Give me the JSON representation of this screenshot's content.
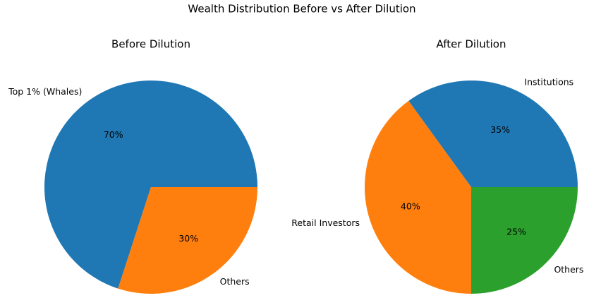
{
  "title": "Wealth Distribution Before vs After Dilution",
  "chart_data": [
    {
      "type": "pie",
      "title": "Before Dilution",
      "categories": [
        "Top 1% (Whales)",
        "Others"
      ],
      "values": [
        70,
        30
      ],
      "value_labels": [
        "70%",
        "30%"
      ],
      "colors": [
        "#1f77b4",
        "#ff7f0e"
      ]
    },
    {
      "type": "pie",
      "title": "After Dilution",
      "categories": [
        "Institutions",
        "Retail Investors",
        "Others"
      ],
      "values": [
        35,
        40,
        25
      ],
      "value_labels": [
        "35%",
        "40%",
        "25%"
      ],
      "colors": [
        "#1f77b4",
        "#ff7f0e",
        "#2ca02c"
      ]
    }
  ]
}
